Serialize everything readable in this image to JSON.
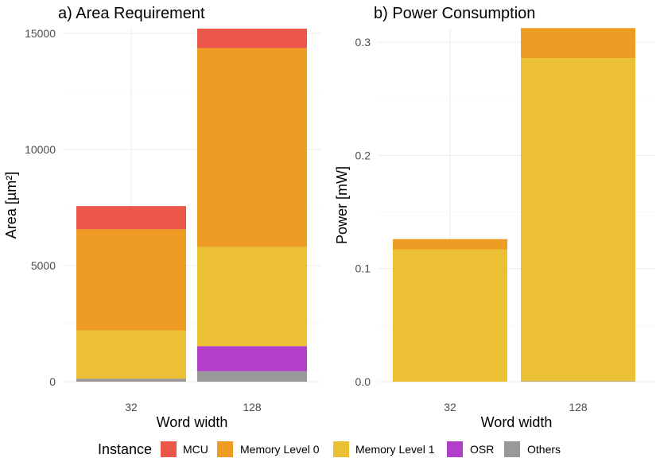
{
  "chart_data": [
    {
      "type": "bar",
      "stacked": true,
      "title": "a) Area Requirement",
      "xlabel": "Word width",
      "ylabel": "Area [µm²]",
      "categories": [
        "32",
        "128"
      ],
      "ylim": [
        0,
        15200
      ],
      "yticks": [
        "0",
        "5000",
        "10000",
        "15000"
      ],
      "series": [
        {
          "name": "Others",
          "values": [
            130,
            450
          ]
        },
        {
          "name": "OSR",
          "values": [
            0,
            1080
          ]
        },
        {
          "name": "Memory Level 1",
          "values": [
            2080,
            4270
          ]
        },
        {
          "name": "Memory Level 0",
          "values": [
            4350,
            8560
          ]
        },
        {
          "name": "MCU",
          "values": [
            1000,
            840
          ]
        }
      ],
      "grid": true
    },
    {
      "type": "bar",
      "stacked": true,
      "title": "b) Power Consumption",
      "xlabel": "Word width",
      "ylabel": "Power [mW]",
      "categories": [
        "32",
        "128"
      ],
      "ylim": [
        0,
        0.312
      ],
      "yticks": [
        "0.0",
        "0.1",
        "0.2",
        "0.3"
      ],
      "series": [
        {
          "name": "Others",
          "values": [
            0,
            0.0005
          ]
        },
        {
          "name": "OSR",
          "values": [
            0,
            0
          ]
        },
        {
          "name": "Memory Level 1",
          "values": [
            0.117,
            0.2855
          ]
        },
        {
          "name": "Memory Level 0",
          "values": [
            0.009,
            0.0265
          ]
        },
        {
          "name": "MCU",
          "values": [
            0,
            0
          ]
        }
      ],
      "grid": true
    }
  ],
  "legend": {
    "title": "Instance",
    "position": "bottom",
    "items": [
      {
        "label": "MCU",
        "color": "#EB584A"
      },
      {
        "label": "Memory Level 0",
        "color": "#EE9C24"
      },
      {
        "label": "Memory Level 1",
        "color": "#EBC035"
      },
      {
        "label": "OSR",
        "color": "#B23FC9"
      },
      {
        "label": "Others",
        "color": "#999999"
      }
    ]
  }
}
